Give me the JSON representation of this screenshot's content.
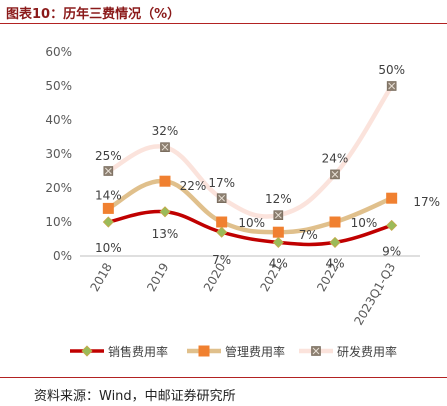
{
  "figure_title": "图表10：历年三费情况（%）",
  "source": "资料来源：Wind，中邮证券研究所",
  "chart_data": {
    "type": "line",
    "title": "",
    "xlabel": "",
    "ylabel": "",
    "categories": [
      "2018",
      "2019",
      "2020",
      "2021",
      "2022",
      "2023Q1-Q3"
    ],
    "ylim": [
      0,
      60
    ],
    "yticks": [
      0,
      10,
      20,
      30,
      40,
      50,
      60
    ],
    "ytick_labels": [
      "0%",
      "10%",
      "20%",
      "30%",
      "40%",
      "50%",
      "60%"
    ],
    "grid": false,
    "smooth": true,
    "legend_position": "bottom",
    "series": [
      {
        "name": "销售费用率",
        "values": [
          10,
          13,
          7,
          4,
          4,
          9
        ],
        "labels": [
          "10%",
          "13%",
          "7%",
          "4%",
          "4%",
          "9%"
        ],
        "line_color": "#c00000",
        "marker_color": "#9bbb59",
        "marker": "diamond"
      },
      {
        "name": "管理费用率",
        "values": [
          14,
          22,
          10,
          7,
          10,
          17
        ],
        "labels": [
          "14%",
          "22%",
          "10%",
          "7%",
          "10%",
          "17%"
        ],
        "line_color": "#e0c08c",
        "marker_color": "#f08030",
        "marker": "square"
      },
      {
        "name": "研发费用率",
        "values": [
          25,
          32,
          17,
          12,
          24,
          50
        ],
        "labels": [
          "25%",
          "32%",
          "17%",
          "12%",
          "24%",
          "50%"
        ],
        "line_color": "#fbe3dc",
        "marker_color": "#8c7f70",
        "marker": "x-square"
      }
    ]
  }
}
